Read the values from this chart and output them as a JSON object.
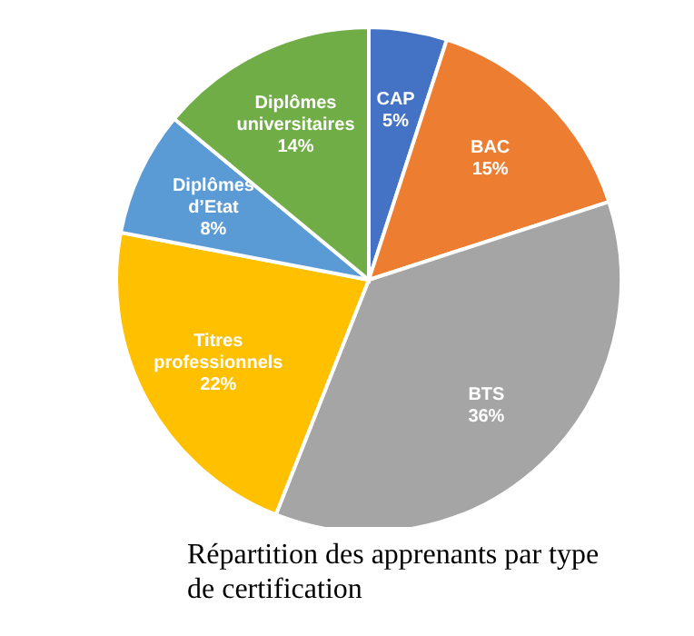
{
  "chart_data": {
    "type": "pie",
    "title": "Répartition des apprenants par type de certification",
    "categories": [
      "CAP",
      "BAC",
      "BTS",
      "Titres professionnels",
      "Diplômes d’Etat",
      "Diplômes universitaires"
    ],
    "values": [
      5,
      15,
      36,
      22,
      8,
      14
    ],
    "value_labels": [
      "5%",
      "15%",
      "36%",
      "22%",
      "8%",
      "14%"
    ],
    "colors": [
      "#4472c4",
      "#ed7d31",
      "#a5a5a5",
      "#ffc000",
      "#5b9bd5",
      "#70ad47"
    ]
  }
}
